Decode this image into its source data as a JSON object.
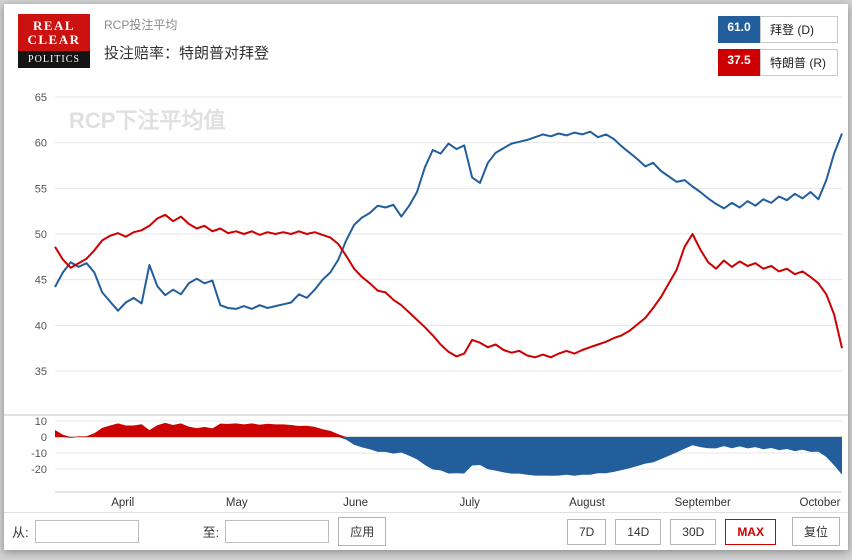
{
  "header": {
    "logo": {
      "line1": "REAL",
      "line2": "CLEAR",
      "line3": "POLITICS"
    },
    "kicker": "RCP投注平均",
    "title": "投注赔率：特朗普对拜登"
  },
  "legend": [
    {
      "value": "61.0",
      "label": "拜登 (D)",
      "color": "#225e9c"
    },
    {
      "value": "37.5",
      "label": "特朗普 (R)",
      "color": "#cc0000"
    }
  ],
  "chart_data": {
    "type": "line",
    "title": "RCP投注平均",
    "watermark": "RCP下注平均值",
    "x_range": [
      0,
      1
    ],
    "series": [
      {
        "name": "拜登 (D)",
        "color": "#225e9c",
        "current": 61.0,
        "values": [
          44.2,
          45.8,
          46.9,
          46.4,
          46.8,
          45.8,
          43.6,
          42.6,
          41.6,
          42.5,
          43.0,
          42.4,
          46.6,
          44.3,
          43.3,
          43.9,
          43.4,
          44.6,
          45.1,
          44.6,
          44.9,
          42.2,
          41.9,
          41.8,
          42.1,
          41.8,
          42.2,
          41.9,
          42.1,
          42.3,
          42.5,
          43.4,
          43.0,
          43.9,
          45.0,
          45.8,
          47.2,
          49.3,
          51.0,
          51.8,
          52.3,
          53.1,
          52.9,
          53.2,
          51.9,
          53.1,
          54.6,
          57.3,
          59.2,
          58.8,
          59.9,
          59.3,
          59.7,
          56.2,
          55.6,
          57.8,
          58.9,
          59.4,
          59.9,
          60.1,
          60.3,
          60.6,
          60.9,
          60.7,
          61.0,
          60.8,
          61.1,
          60.9,
          61.2,
          60.6,
          60.9,
          60.4,
          59.6,
          58.9,
          58.2,
          57.4,
          57.8,
          56.9,
          56.3,
          55.7,
          55.9,
          55.2,
          54.6,
          53.9,
          53.3,
          52.8,
          53.4,
          52.9,
          53.6,
          53.1,
          53.8,
          53.4,
          54.1,
          53.7,
          54.4,
          53.9,
          54.6,
          53.8,
          55.9,
          58.8,
          61.0
        ]
      },
      {
        "name": "特朗普 (R)",
        "color": "#cc0000",
        "current": 37.5,
        "values": [
          48.6,
          47.2,
          46.3,
          46.8,
          47.3,
          48.2,
          49.3,
          49.8,
          50.1,
          49.7,
          50.2,
          50.4,
          50.9,
          51.7,
          52.1,
          51.4,
          51.9,
          51.1,
          50.6,
          50.9,
          50.3,
          50.6,
          50.1,
          50.3,
          50.0,
          50.3,
          49.9,
          50.2,
          50.0,
          50.2,
          50.0,
          50.3,
          50.0,
          50.2,
          49.9,
          49.6,
          48.9,
          47.6,
          46.2,
          45.3,
          44.6,
          43.8,
          43.6,
          42.8,
          42.2,
          41.4,
          40.6,
          39.8,
          38.9,
          37.9,
          37.1,
          36.6,
          36.9,
          38.4,
          38.1,
          37.6,
          37.9,
          37.3,
          37.0,
          37.2,
          36.7,
          36.5,
          36.8,
          36.5,
          36.9,
          37.2,
          36.9,
          37.3,
          37.6,
          37.9,
          38.2,
          38.6,
          38.9,
          39.4,
          40.1,
          40.8,
          41.9,
          43.1,
          44.6,
          46.1,
          48.6,
          50.0,
          48.3,
          46.9,
          46.2,
          47.1,
          46.4,
          47.0,
          46.5,
          46.8,
          46.2,
          46.5,
          45.9,
          46.2,
          45.6,
          45.9,
          45.3,
          44.6,
          43.4,
          41.2,
          37.5
        ]
      }
    ],
    "main_axis": {
      "ticks": [
        65,
        60,
        55,
        50,
        45,
        40,
        35
      ],
      "range": [
        35,
        65
      ]
    },
    "spread_panel": {
      "ticks": [
        10,
        0,
        -10,
        -20
      ],
      "range": [
        -27,
        13
      ]
    },
    "x_axis": {
      "labels": [
        "April",
        "May",
        "June",
        "July",
        "August",
        "September",
        "October"
      ],
      "positions": [
        0.086,
        0.231,
        0.382,
        0.527,
        0.676,
        0.823,
        0.972
      ]
    },
    "legend_position": "top-right",
    "grid": true
  },
  "controls": {
    "from_label": "从:",
    "from_value": "",
    "to_label": "至:",
    "to_value": "",
    "apply_label": "应用",
    "range_buttons": [
      {
        "label": "7D",
        "active": false
      },
      {
        "label": "14D",
        "active": false
      },
      {
        "label": "30D",
        "active": false
      },
      {
        "label": "MAX",
        "active": true
      }
    ],
    "reset_label": "复位"
  }
}
